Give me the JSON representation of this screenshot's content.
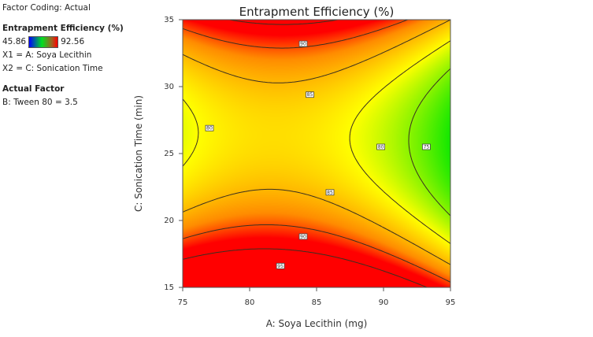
{
  "legend": {
    "factor_coding": "Factor Coding: Actual",
    "response_title": "Entrapment Efficiency (%)",
    "color_min": "45.86",
    "color_max": "92.56",
    "x1": "X1 = A: Soya Lecithin",
    "x2": "X2 = C: Sonication Time",
    "actual_factor_title": "Actual Factor",
    "actual_factor": "B: Tween 80 = 3.5"
  },
  "chart_data": {
    "type": "heatmap",
    "subtype": "contour",
    "title": "Entrapment Efficiency (%)",
    "xlabel": "A: Soya Lecithin (mg)",
    "ylabel": "C: Sonication Time  (min)",
    "xlim": [
      75,
      95
    ],
    "ylim": [
      15,
      35
    ],
    "xticks": [
      75,
      80,
      85,
      90,
      95
    ],
    "yticks": [
      15,
      20,
      25,
      30,
      35
    ],
    "color_range": [
      45.86,
      92.56
    ],
    "colormap": [
      "#0000ff",
      "#00ff00",
      "#ffff00",
      "#ff0000"
    ],
    "contour_levels": [
      75,
      80,
      85,
      90,
      95
    ],
    "contour_labels": [
      {
        "level": "90",
        "x": 84.0,
        "y": 33.2
      },
      {
        "level": "85",
        "x": 84.5,
        "y": 29.4
      },
      {
        "level": "80",
        "x": 77.0,
        "y": 26.9
      },
      {
        "level": "80",
        "x": 89.8,
        "y": 25.5
      },
      {
        "level": "75",
        "x": 93.2,
        "y": 25.5
      },
      {
        "level": "85",
        "x": 86.0,
        "y": 22.1
      },
      {
        "level": "90",
        "x": 84.0,
        "y": 18.8
      },
      {
        "level": "95",
        "x": 82.3,
        "y": 16.6
      }
    ],
    "surface_samples": [
      {
        "x": 84,
        "y": 25.5,
        "value": 82
      },
      {
        "x": 77,
        "y": 25.5,
        "value": 80
      },
      {
        "x": 89.8,
        "y": 25.5,
        "value": 80
      },
      {
        "x": 93.2,
        "y": 25.5,
        "value": 75
      },
      {
        "x": 84,
        "y": 29.4,
        "value": 85
      },
      {
        "x": 84,
        "y": 33.2,
        "value": 90
      },
      {
        "x": 83,
        "y": 22.5,
        "value": 85
      },
      {
        "x": 82,
        "y": 18.7,
        "value": 90
      },
      {
        "x": 82.5,
        "y": 16.2,
        "value": 95
      }
    ]
  }
}
